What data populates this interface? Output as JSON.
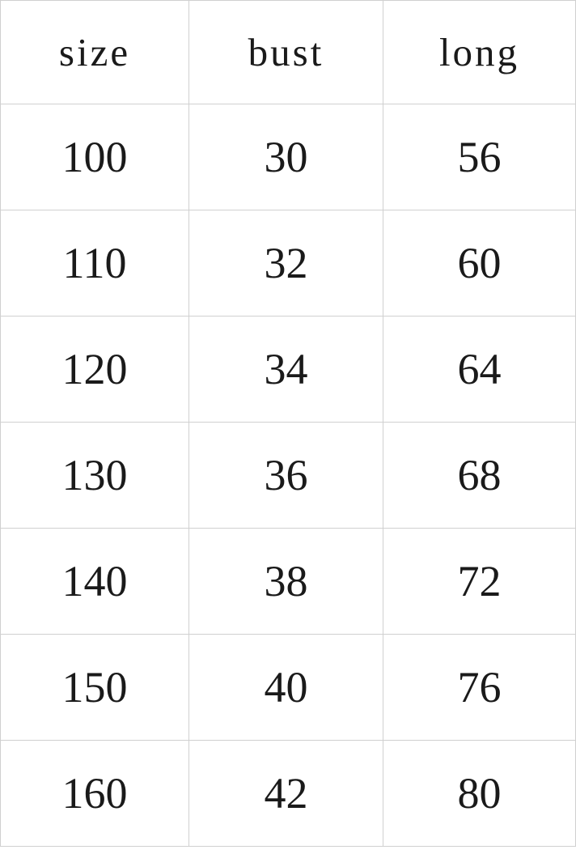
{
  "colors": {
    "background": "#ffffff",
    "grid_border": "#d0d0d0",
    "text": "#1a1a1a"
  },
  "chart_data": {
    "type": "table",
    "title": "",
    "columns": [
      "size",
      "bust",
      "long"
    ],
    "rows": [
      [
        100,
        30,
        56
      ],
      [
        110,
        32,
        60
      ],
      [
        120,
        34,
        64
      ],
      [
        130,
        36,
        68
      ],
      [
        140,
        38,
        72
      ],
      [
        150,
        40,
        76
      ],
      [
        160,
        42,
        80
      ]
    ],
    "layout_hints": {
      "grid": true,
      "header_row": true,
      "cell_alignment": "center"
    }
  }
}
